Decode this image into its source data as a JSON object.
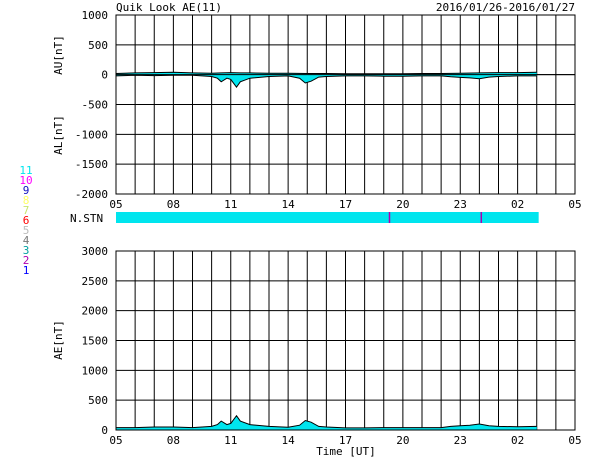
{
  "header": {
    "title": "Quik Look AE(11)",
    "date_range": "2016/01/26-2016/01/27"
  },
  "legend": {
    "items": [
      {
        "label": "11",
        "color": "#00e5ee"
      },
      {
        "label": "10",
        "color": "#ff00ff"
      },
      {
        "label": "9",
        "color": "#1010c0"
      },
      {
        "label": "8",
        "color": "#ffff66"
      },
      {
        "label": "7",
        "color": "#c8e66e"
      },
      {
        "label": "6",
        "color": "#ff0000"
      },
      {
        "label": "5",
        "color": "#bbbbbb"
      },
      {
        "label": "4",
        "color": "#777777"
      },
      {
        "label": "3",
        "color": "#00a0a0"
      },
      {
        "label": "2",
        "color": "#b000b0"
      },
      {
        "label": "1",
        "color": "#0000ff"
      }
    ]
  },
  "station_bar": {
    "label": "N.STN",
    "color": "#00e5ee",
    "marker_color": "#b000b0",
    "coverage_hours": [
      5.0,
      3.1
    ],
    "markers_hours": [
      19.3,
      0.1
    ]
  },
  "chart_data": [
    {
      "type": "area",
      "name": "AU/AL panel",
      "ylabel_top": "AU[nT]",
      "ylabel_bottom": "AL[nT]",
      "ylim": [
        -2000,
        1000
      ],
      "yticks": [
        1000,
        500,
        0,
        -500,
        -1000,
        -1500,
        -2000
      ],
      "xticks": [
        "05",
        "08",
        "11",
        "14",
        "17",
        "20",
        "23",
        "02",
        "05"
      ],
      "xlim_hours_from_05UT": [
        0,
        24
      ],
      "grid": true,
      "series": [
        {
          "name": "AU",
          "color": "#00e5ee",
          "x_hours": [
            5.0,
            6.0,
            7.0,
            8.0,
            9.0,
            10.0,
            10.5,
            11.0,
            11.5,
            12.0,
            13.0,
            14.0,
            15.0,
            16.0,
            17.0,
            18.0,
            19.0,
            20.0,
            21.0,
            22.0,
            23.0,
            24.0,
            25.0,
            26.0,
            27.0
          ],
          "values": [
            20,
            30,
            35,
            40,
            30,
            25,
            30,
            35,
            30,
            30,
            25,
            25,
            20,
            20,
            15,
            15,
            15,
            15,
            20,
            20,
            25,
            30,
            35,
            35,
            40
          ]
        },
        {
          "name": "AL",
          "color": "#00e5ee",
          "x_hours": [
            5.0,
            6.0,
            7.0,
            8.0,
            9.0,
            10.0,
            10.3,
            10.5,
            10.8,
            11.0,
            11.3,
            11.5,
            12.0,
            13.0,
            14.0,
            14.6,
            14.9,
            15.2,
            15.6,
            16.0,
            17.0,
            18.0,
            19.0,
            20.0,
            21.0,
            22.0,
            22.5,
            23.0,
            23.5,
            24.0,
            24.5,
            25.0,
            26.0,
            27.0
          ],
          "values": [
            -20,
            -10,
            -15,
            -10,
            -10,
            -30,
            -60,
            -120,
            -60,
            -80,
            -210,
            -120,
            -60,
            -30,
            -20,
            -60,
            -140,
            -110,
            -40,
            -30,
            -20,
            -20,
            -25,
            -25,
            -20,
            -20,
            -35,
            -45,
            -55,
            -70,
            -40,
            -30,
            -20,
            -20
          ]
        }
      ]
    },
    {
      "type": "area",
      "name": "AE panel",
      "ylabel": "AE[nT]",
      "xlabel": "Time [UT]",
      "ylim": [
        0,
        3000
      ],
      "yticks": [
        3000,
        2500,
        2000,
        1500,
        1000,
        500,
        0
      ],
      "xticks": [
        "05",
        "08",
        "11",
        "14",
        "17",
        "20",
        "23",
        "02",
        "05"
      ],
      "xlim_hours_from_05UT": [
        0,
        24
      ],
      "grid": true,
      "series": [
        {
          "name": "AE",
          "color": "#00e5ee",
          "x_hours": [
            5.0,
            6.0,
            7.0,
            8.0,
            9.0,
            10.0,
            10.3,
            10.5,
            10.8,
            11.0,
            11.3,
            11.5,
            12.0,
            13.0,
            14.0,
            14.6,
            14.9,
            15.2,
            15.6,
            16.0,
            17.0,
            18.0,
            19.0,
            20.0,
            21.0,
            22.0,
            22.5,
            23.0,
            23.5,
            24.0,
            24.5,
            25.0,
            26.0,
            27.0
          ],
          "values": [
            40,
            40,
            50,
            50,
            40,
            60,
            90,
            150,
            90,
            110,
            240,
            150,
            90,
            60,
            45,
            80,
            160,
            130,
            60,
            50,
            35,
            35,
            40,
            40,
            40,
            40,
            60,
            70,
            80,
            100,
            70,
            60,
            55,
            60
          ]
        }
      ]
    }
  ]
}
